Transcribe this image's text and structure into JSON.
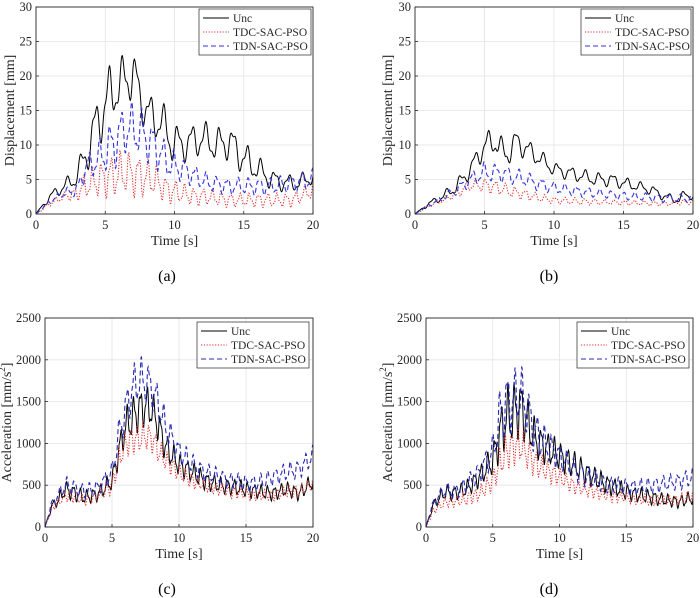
{
  "chart_data": [
    {
      "id": "a",
      "type": "line",
      "caption": "(a)",
      "xlabel": "Time [s]",
      "ylabel": "Displacement [mm]",
      "ylabel_sup": "",
      "xlim": [
        0,
        20
      ],
      "ylim": [
        0,
        30
      ],
      "xticks": [
        "0",
        "5",
        "10",
        "15",
        "20"
      ],
      "yticks": [
        "0",
        "5",
        "10",
        "15",
        "20",
        "25",
        "30"
      ],
      "xtick_values": [
        0,
        5,
        10,
        15,
        20
      ],
      "ytick_values": [
        0,
        5,
        10,
        15,
        20,
        25,
        30
      ],
      "grid": true,
      "legend_position": "top-right",
      "series": [
        {
          "name": "Unc",
          "color": "#000000",
          "dash": "solid",
          "osc_freq": 1.0,
          "x": [
            0,
            1,
            2,
            2.8,
            3.5,
            4.2,
            5,
            5.6,
            6.2,
            7,
            7.6,
            8.3,
            9,
            9.8,
            10.5,
            11.2,
            12,
            13,
            14,
            15,
            16,
            17,
            18,
            19,
            20
          ],
          "y": [
            0,
            2.5,
            4,
            5,
            8,
            12,
            16,
            18,
            19,
            20.5,
            16.5,
            14,
            13.5,
            10.5,
            10,
            10.5,
            11,
            10,
            10.5,
            8,
            6.5,
            5,
            4.5,
            4.5,
            5.5
          ],
          "osc_amp": [
            0,
            0.5,
            0.8,
            1,
            2,
            3,
            3.5,
            3.5,
            3,
            3,
            2.5,
            2.5,
            2.5,
            2.5,
            2,
            2,
            2,
            2,
            2,
            2,
            1.5,
            1.2,
            1,
            1,
            1
          ]
        },
        {
          "name": "TDC-SAC-PSO",
          "color": "#e03030",
          "dash": "dot",
          "osc_freq": 1.5,
          "x": [
            0,
            1,
            2,
            3,
            3.5,
            4.5,
            5.5,
            6.5,
            7.5,
            8.5,
            9.5,
            10.5,
            11.5,
            12.5,
            14,
            15.5,
            17,
            18.5,
            20
          ],
          "y": [
            0,
            1.5,
            2.5,
            3,
            4,
            5,
            5.5,
            6,
            5.5,
            5,
            3.5,
            3,
            2.5,
            2.5,
            2,
            2,
            2,
            2,
            3.5
          ],
          "osc_amp": [
            0,
            0.3,
            0.5,
            0.8,
            1.5,
            2,
            2.5,
            2.5,
            2.5,
            2,
            1.5,
            1.2,
            1,
            1,
            0.8,
            0.8,
            0.8,
            0.8,
            1
          ]
        },
        {
          "name": "TDN-SAC-PSO",
          "color": "#3333dd",
          "dash": "dash",
          "osc_freq": 1.3,
          "x": [
            0,
            1,
            2,
            3,
            3.5,
            4.5,
            5.5,
            6.5,
            7.5,
            8.5,
            9.5,
            10.5,
            11.5,
            12.5,
            14,
            15.5,
            17,
            18.5,
            20
          ],
          "y": [
            0,
            1.8,
            3,
            3.5,
            6.5,
            8,
            10,
            12.5,
            12,
            10,
            7.5,
            6.5,
            5.5,
            4.5,
            4,
            4,
            4,
            4.5,
            5
          ],
          "osc_amp": [
            0,
            0.3,
            0.5,
            0.8,
            1.5,
            2,
            3,
            3,
            3,
            2.5,
            2,
            1.5,
            1.2,
            1,
            1,
            1,
            1,
            1,
            1.2
          ]
        }
      ]
    },
    {
      "id": "b",
      "type": "line",
      "caption": "(b)",
      "xlabel": "Time [s]",
      "ylabel": "Displacement [mm]",
      "ylabel_sup": "",
      "xlim": [
        0,
        20
      ],
      "ylim": [
        0,
        30
      ],
      "xticks": [
        "0",
        "5",
        "10",
        "15",
        "20"
      ],
      "yticks": [
        "0",
        "5",
        "10",
        "15",
        "20",
        "25",
        "30"
      ],
      "xtick_values": [
        0,
        5,
        10,
        15,
        20
      ],
      "ytick_values": [
        0,
        5,
        10,
        15,
        20,
        25,
        30
      ],
      "grid": true,
      "legend_position": "top-right",
      "series": [
        {
          "name": "Unc",
          "color": "#000000",
          "dash": "solid",
          "osc_freq": 1.0,
          "x": [
            0,
            1,
            2,
            3,
            4,
            5,
            5.8,
            6.5,
            7.3,
            8,
            9,
            10,
            11,
            12,
            13,
            14,
            15,
            16,
            17,
            18,
            19,
            19.5,
            20
          ],
          "y": [
            0,
            1.5,
            2.5,
            4,
            6.5,
            10,
            10.5,
            8.5,
            10.5,
            9.5,
            8,
            6.5,
            6,
            5.5,
            5,
            5,
            4.5,
            4,
            3.5,
            2.5,
            2,
            3,
            2.5
          ],
          "osc_amp": [
            0,
            0.3,
            0.5,
            0.8,
            1,
            1.5,
            1.5,
            1.5,
            1.5,
            1.2,
            1,
            0.8,
            0.8,
            0.8,
            0.8,
            0.8,
            0.7,
            0.6,
            0.6,
            0.5,
            0.5,
            0.6,
            0.5
          ]
        },
        {
          "name": "TDC-SAC-PSO",
          "color": "#e03030",
          "dash": "dot",
          "osc_freq": 1.4,
          "x": [
            0,
            1,
            2,
            3,
            4,
            5,
            6,
            7,
            8,
            9,
            10,
            12,
            14,
            16,
            18,
            20
          ],
          "y": [
            0,
            1.2,
            2,
            3,
            4.2,
            4.2,
            3.8,
            3.2,
            2.8,
            2.3,
            2,
            1.8,
            1.7,
            1.6,
            1.5,
            1.8
          ],
          "osc_amp": [
            0,
            0.2,
            0.3,
            0.5,
            0.7,
            0.8,
            0.8,
            0.7,
            0.6,
            0.5,
            0.4,
            0.4,
            0.3,
            0.3,
            0.3,
            0.3
          ]
        },
        {
          "name": "TDN-SAC-PSO",
          "color": "#3333dd",
          "dash": "dash",
          "osc_freq": 1.2,
          "x": [
            0,
            1,
            2,
            3,
            4,
            5,
            6,
            7,
            8,
            9,
            10,
            12,
            14,
            16,
            18,
            20
          ],
          "y": [
            0,
            1.3,
            2.3,
            3.5,
            5,
            6,
            6,
            5.5,
            5,
            4.3,
            3.8,
            3.2,
            2.8,
            2.5,
            2.3,
            2.2
          ],
          "osc_amp": [
            0,
            0.2,
            0.4,
            0.6,
            0.8,
            1.2,
            1,
            1,
            0.9,
            0.8,
            0.7,
            0.6,
            0.5,
            0.5,
            0.5,
            0.5
          ]
        }
      ]
    },
    {
      "id": "c",
      "type": "line",
      "caption": "(c)",
      "xlabel": "Time [s]",
      "ylabel": "Acceleration [mm/s",
      "ylabel_sup": "2",
      "xlim": [
        0,
        20
      ],
      "ylim": [
        0,
        2500
      ],
      "xticks": [
        "0",
        "5",
        "10",
        "15",
        "20"
      ],
      "yticks": [
        "0",
        "500",
        "1000",
        "1500",
        "2000",
        "2500"
      ],
      "xtick_values": [
        0,
        5,
        10,
        15,
        20
      ],
      "ytick_values": [
        0,
        500,
        1000,
        1500,
        2000,
        2500
      ],
      "grid": true,
      "legend_position": "top-right",
      "series": [
        {
          "name": "Unc",
          "color": "#000000",
          "dash": "solid",
          "osc_freq": 2.0,
          "x": [
            0,
            0.5,
            1,
            1.5,
            2,
            3,
            4,
            5,
            5.5,
            6,
            6.5,
            7,
            7.5,
            8,
            8.5,
            9,
            10,
            11,
            12,
            13,
            14,
            15,
            16,
            17,
            18,
            19,
            20
          ],
          "y": [
            0,
            250,
            320,
            450,
            420,
            350,
            400,
            550,
            900,
            1200,
            1300,
            1400,
            1450,
            1400,
            1200,
            950,
            750,
            650,
            550,
            500,
            480,
            450,
            420,
            400,
            450,
            400,
            550
          ],
          "osc_amp": [
            0,
            40,
            60,
            80,
            80,
            70,
            70,
            90,
            140,
            180,
            200,
            200,
            200,
            180,
            160,
            140,
            110,
            100,
            90,
            80,
            80,
            80,
            70,
            70,
            70,
            70,
            80
          ]
        },
        {
          "name": "TDC-SAC-PSO",
          "color": "#e03030",
          "dash": "dot",
          "osc_freq": 2.2,
          "x": [
            0,
            0.5,
            1,
            1.5,
            2,
            3,
            4,
            5,
            5.5,
            6,
            6.5,
            7,
            7.5,
            8,
            8.5,
            9,
            10,
            11,
            12,
            13,
            14,
            15,
            16,
            17,
            18,
            19,
            20
          ],
          "y": [
            0,
            220,
            300,
            380,
            370,
            320,
            380,
            500,
            800,
            1000,
            1050,
            1050,
            1100,
            1050,
            900,
            800,
            650,
            550,
            500,
            450,
            420,
            400,
            380,
            380,
            420,
            430,
            520
          ],
          "osc_amp": [
            0,
            30,
            40,
            60,
            60,
            50,
            60,
            80,
            120,
            140,
            140,
            140,
            140,
            130,
            120,
            100,
            80,
            70,
            60,
            60,
            60,
            60,
            50,
            50,
            60,
            60,
            60
          ]
        },
        {
          "name": "TDN-SAC-PSO",
          "color": "#2a2ab0",
          "dash": "dash",
          "osc_freq": 1.8,
          "x": [
            0,
            0.5,
            1,
            1.5,
            2,
            3,
            4,
            5,
            5.5,
            6,
            6.5,
            7,
            7.5,
            8,
            8.5,
            9,
            10,
            11,
            12,
            13,
            14,
            15,
            16,
            17,
            18,
            19,
            20
          ],
          "y": [
            0,
            280,
            380,
            500,
            480,
            420,
            480,
            650,
            1100,
            1400,
            1650,
            1750,
            1750,
            1650,
            1450,
            1200,
            900,
            750,
            650,
            600,
            550,
            520,
            530,
            600,
            650,
            700,
            850
          ],
          "osc_amp": [
            0,
            40,
            60,
            80,
            80,
            70,
            70,
            100,
            150,
            200,
            220,
            220,
            220,
            200,
            180,
            150,
            120,
            100,
            90,
            80,
            80,
            80,
            80,
            80,
            90,
            90,
            100
          ]
        }
      ]
    },
    {
      "id": "d",
      "type": "line",
      "caption": "(d)",
      "xlabel": "Time [s]",
      "ylabel": "Acceleration [mm/s",
      "ylabel_sup": "2",
      "xlim": [
        0,
        20
      ],
      "ylim": [
        0,
        2500
      ],
      "xticks": [
        "0",
        "5",
        "10",
        "15",
        "20"
      ],
      "yticks": [
        "0",
        "500",
        "1000",
        "1500",
        "2000",
        "2500"
      ],
      "xtick_values": [
        0,
        5,
        10,
        15,
        20
      ],
      "ytick_values": [
        0,
        500,
        1000,
        1500,
        2000,
        2500
      ],
      "grid": true,
      "legend_position": "top-right",
      "series": [
        {
          "name": "Unc",
          "color": "#000000",
          "dash": "solid",
          "osc_freq": 2.0,
          "x": [
            0,
            0.5,
            1,
            1.5,
            2,
            3,
            4,
            5,
            5.5,
            6,
            6.5,
            7,
            7.5,
            8,
            8.5,
            9,
            10,
            11,
            12,
            13,
            14,
            15,
            16,
            17,
            18,
            19,
            20
          ],
          "y": [
            0,
            250,
            350,
            420,
            400,
            450,
            600,
            800,
            1100,
            1300,
            1350,
            1450,
            1300,
            1100,
            1000,
            950,
            850,
            750,
            650,
            550,
            480,
            420,
            380,
            350,
            320,
            300,
            350
          ],
          "osc_amp": [
            0,
            40,
            60,
            70,
            70,
            80,
            100,
            150,
            250,
            300,
            300,
            300,
            250,
            200,
            180,
            160,
            140,
            130,
            110,
            100,
            90,
            80,
            70,
            70,
            60,
            60,
            70
          ]
        },
        {
          "name": "TDC-SAC-PSO",
          "color": "#e03030",
          "dash": "dot",
          "osc_freq": 2.2,
          "x": [
            0,
            0.5,
            1,
            1.5,
            2,
            3,
            4,
            5,
            5.5,
            6,
            6.5,
            7,
            7.5,
            8,
            8.5,
            9,
            10,
            11,
            12,
            13,
            14,
            15,
            16,
            17,
            18,
            19,
            20
          ],
          "y": [
            0,
            180,
            250,
            300,
            300,
            330,
            400,
            550,
            750,
            900,
            950,
            1000,
            900,
            800,
            720,
            680,
            600,
            500,
            450,
            400,
            370,
            350,
            330,
            320,
            320,
            330,
            380
          ],
          "osc_amp": [
            0,
            30,
            40,
            50,
            50,
            60,
            70,
            100,
            150,
            180,
            180,
            180,
            160,
            140,
            120,
            110,
            90,
            80,
            70,
            60,
            60,
            50,
            50,
            50,
            50,
            50,
            60
          ]
        },
        {
          "name": "TDN-SAC-PSO",
          "color": "#2a2ab0",
          "dash": "dash",
          "osc_freq": 1.8,
          "x": [
            0,
            0.5,
            1,
            1.5,
            2,
            3,
            4,
            5,
            5.5,
            6,
            6.5,
            7,
            7.5,
            8,
            8.5,
            9,
            10,
            11,
            12,
            13,
            14,
            15,
            16,
            17,
            18,
            19,
            20
          ],
          "y": [
            0,
            270,
            380,
            450,
            420,
            500,
            650,
            900,
            1300,
            1500,
            1500,
            1600,
            1450,
            1200,
            1050,
            980,
            850,
            700,
            600,
            540,
            500,
            480,
            480,
            500,
            520,
            550,
            600
          ],
          "osc_amp": [
            0,
            40,
            60,
            70,
            70,
            80,
            100,
            160,
            260,
            300,
            300,
            300,
            260,
            220,
            190,
            160,
            130,
            110,
            100,
            90,
            80,
            80,
            80,
            80,
            80,
            80,
            90
          ]
        }
      ]
    }
  ]
}
